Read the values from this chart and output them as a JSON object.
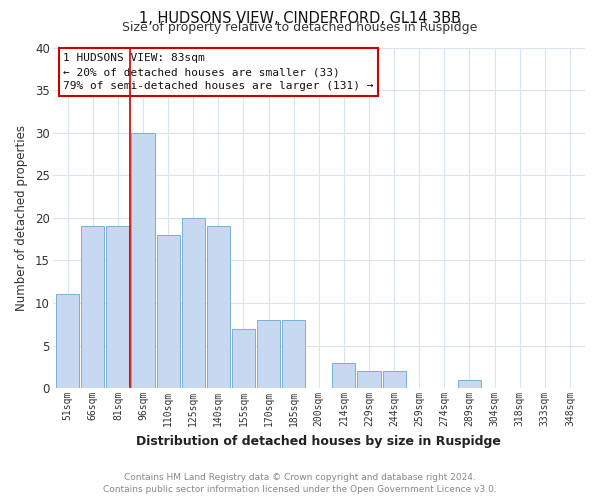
{
  "title": "1, HUDSONS VIEW, CINDERFORD, GL14 3BB",
  "subtitle": "Size of property relative to detached houses in Ruspidge",
  "xlabel": "Distribution of detached houses by size in Ruspidge",
  "ylabel": "Number of detached properties",
  "bar_labels": [
    "51sqm",
    "66sqm",
    "81sqm",
    "96sqm",
    "110sqm",
    "125sqm",
    "140sqm",
    "155sqm",
    "170sqm",
    "185sqm",
    "200sqm",
    "214sqm",
    "229sqm",
    "244sqm",
    "259sqm",
    "274sqm",
    "289sqm",
    "304sqm",
    "318sqm",
    "333sqm",
    "348sqm"
  ],
  "bar_values": [
    11,
    19,
    19,
    30,
    18,
    20,
    19,
    7,
    8,
    8,
    0,
    3,
    2,
    2,
    0,
    0,
    1,
    0,
    0,
    0,
    0
  ],
  "bar_color": "#c6d9f0",
  "bar_edge_color": "#7aafd4",
  "highlight_color": "#cc0000",
  "highlight_bar_index": 2,
  "ylim": [
    0,
    40
  ],
  "yticks": [
    0,
    5,
    10,
    15,
    20,
    25,
    30,
    35,
    40
  ],
  "annotation_title": "1 HUDSONS VIEW: 83sqm",
  "annotation_line1": "← 20% of detached houses are smaller (33)",
  "annotation_line2": "79% of semi-detached houses are larger (131) →",
  "footer_line1": "Contains HM Land Registry data © Crown copyright and database right 2024.",
  "footer_line2": "Contains public sector information licensed under the Open Government Licence v3.0.",
  "grid_color": "#d8e4f0",
  "background_color": "#ffffff"
}
